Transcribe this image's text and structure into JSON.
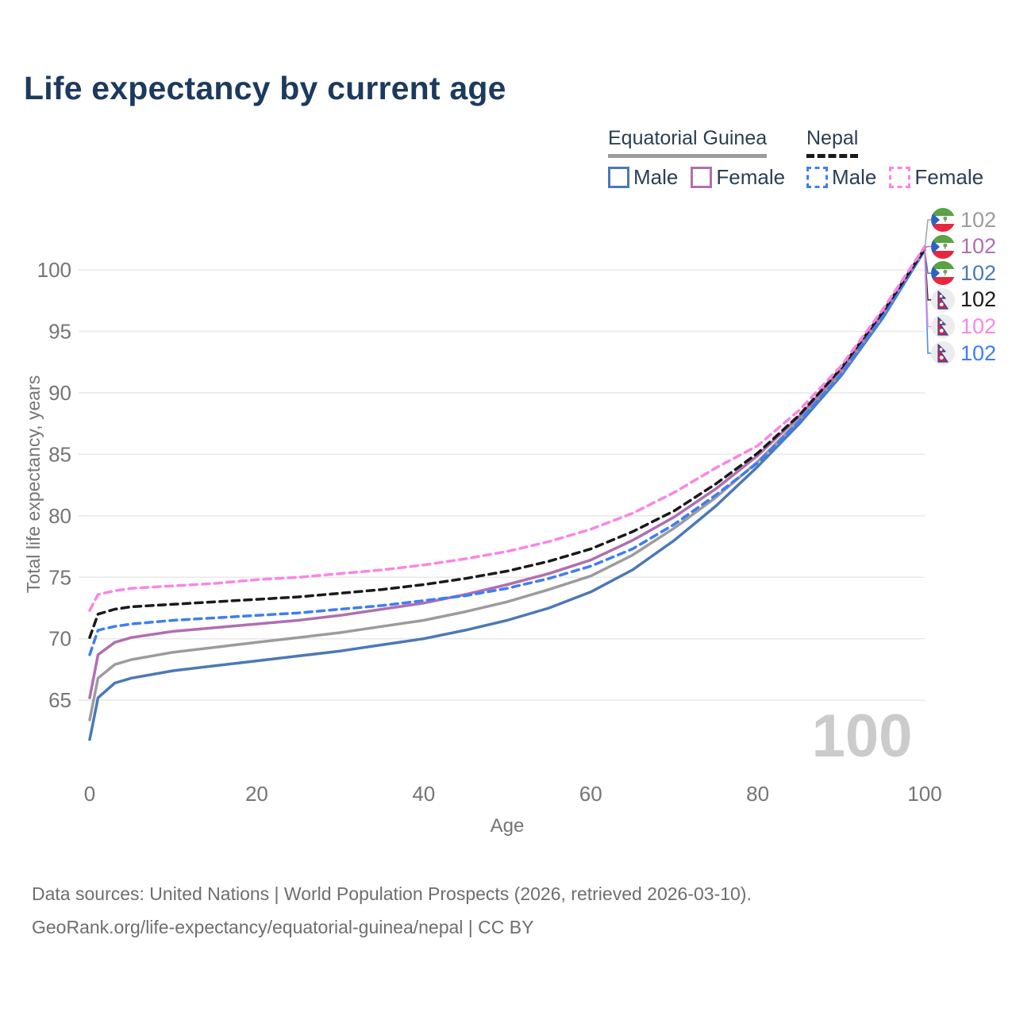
{
  "title": "Life expectancy by current age",
  "legend": {
    "groups": [
      {
        "label": "Equatorial Guinea",
        "line_style": "solid",
        "underline_color": "#9c9c9c",
        "items": [
          {
            "label": "Male",
            "color": "#4c79b6",
            "dashed": false
          },
          {
            "label": "Female",
            "color": "#b06fb0",
            "dashed": false
          }
        ]
      },
      {
        "label": "Nepal",
        "line_style": "dashed",
        "underline_color": "#1a1a1a",
        "items": [
          {
            "label": "Male",
            "color": "#3d7ef5",
            "dashed": true
          },
          {
            "label": "Female",
            "color": "#fb85e3",
            "dashed": true
          }
        ]
      }
    ]
  },
  "chart_data": {
    "type": "line",
    "title": "Life expectancy by current age",
    "xlabel": "Age",
    "ylabel": "Total life expectancy, years",
    "xlim": [
      0,
      100
    ],
    "ylim": [
      61,
      103
    ],
    "xticks": [
      0,
      20,
      40,
      60,
      80,
      100
    ],
    "yticks": [
      65,
      70,
      75,
      80,
      85,
      90,
      95,
      100
    ],
    "grid": "horizontal",
    "watermark": "100",
    "ages": [
      0,
      1,
      3,
      5,
      10,
      15,
      20,
      25,
      30,
      35,
      40,
      45,
      50,
      55,
      60,
      65,
      70,
      75,
      80,
      85,
      90,
      95,
      100
    ],
    "series": [
      {
        "name": "Equatorial Guinea Male",
        "country": "Equatorial Guinea",
        "sex": "Male",
        "flag": "gq",
        "color": "#4c79b6",
        "dashed": false,
        "end_label": "102",
        "label_row": 2,
        "values": [
          61.8,
          65.2,
          66.4,
          66.8,
          67.4,
          67.8,
          68.2,
          68.6,
          69.0,
          69.5,
          70.0,
          70.7,
          71.5,
          72.5,
          73.8,
          75.6,
          78.0,
          80.8,
          84.0,
          87.5,
          91.4,
          96.1,
          101.6
        ]
      },
      {
        "name": "Equatorial Guinea Total",
        "country": "Equatorial Guinea",
        "sex": "Total",
        "flag": "gq",
        "color": "#9c9c9c",
        "dashed": false,
        "end_label": "102",
        "label_row": 0,
        "values": [
          63.4,
          66.8,
          67.9,
          68.3,
          68.9,
          69.3,
          69.7,
          70.1,
          70.5,
          71.0,
          71.5,
          72.2,
          73.0,
          74.0,
          75.1,
          76.8,
          79.0,
          81.5,
          84.4,
          87.8,
          91.6,
          96.3,
          101.7
        ]
      },
      {
        "name": "Equatorial Guinea Female",
        "country": "Equatorial Guinea",
        "sex": "Female",
        "flag": "gq",
        "color": "#b06fb0",
        "dashed": false,
        "end_label": "102",
        "label_row": 1,
        "values": [
          65.2,
          68.7,
          69.7,
          70.1,
          70.6,
          70.9,
          71.2,
          71.5,
          71.9,
          72.4,
          72.9,
          73.6,
          74.4,
          75.3,
          76.4,
          78.0,
          79.9,
          82.2,
          84.9,
          88.1,
          91.9,
          96.5,
          101.8
        ]
      },
      {
        "name": "Nepal Male",
        "country": "Nepal",
        "sex": "Male",
        "flag": "np",
        "color": "#3d7ef5",
        "dashed": true,
        "end_label": "102",
        "label_row": 5,
        "values": [
          68.7,
          70.7,
          71.0,
          71.2,
          71.5,
          71.7,
          71.9,
          72.1,
          72.4,
          72.7,
          73.1,
          73.5,
          74.1,
          74.9,
          75.9,
          77.3,
          79.3,
          81.7,
          84.3,
          87.7,
          91.5,
          96.2,
          101.6
        ]
      },
      {
        "name": "Nepal Total",
        "country": "Nepal",
        "sex": "Total",
        "flag": "np",
        "color": "#1a1a1a",
        "dashed": true,
        "end_label": "102",
        "label_row": 3,
        "values": [
          70.1,
          72.0,
          72.4,
          72.6,
          72.8,
          73.0,
          73.2,
          73.4,
          73.7,
          74.0,
          74.4,
          74.9,
          75.5,
          76.3,
          77.3,
          78.7,
          80.4,
          82.6,
          85.1,
          88.2,
          92.0,
          96.6,
          101.7
        ]
      },
      {
        "name": "Nepal Female",
        "country": "Nepal",
        "sex": "Female",
        "flag": "np",
        "color": "#fb85e3",
        "dashed": true,
        "end_label": "102",
        "label_row": 4,
        "values": [
          72.3,
          73.6,
          73.9,
          74.1,
          74.3,
          74.5,
          74.8,
          75.0,
          75.3,
          75.6,
          76.0,
          76.5,
          77.1,
          77.9,
          78.9,
          80.2,
          81.9,
          83.9,
          85.7,
          88.6,
          92.2,
          96.8,
          101.9
        ]
      }
    ]
  },
  "footer": {
    "line1": "Data sources: United Nations | World Population Prospects (2026, retrieved 2026-03-10).",
    "line2": "GeoRank.org/life-expectancy/equatorial-guinea/nepal | CC BY"
  }
}
